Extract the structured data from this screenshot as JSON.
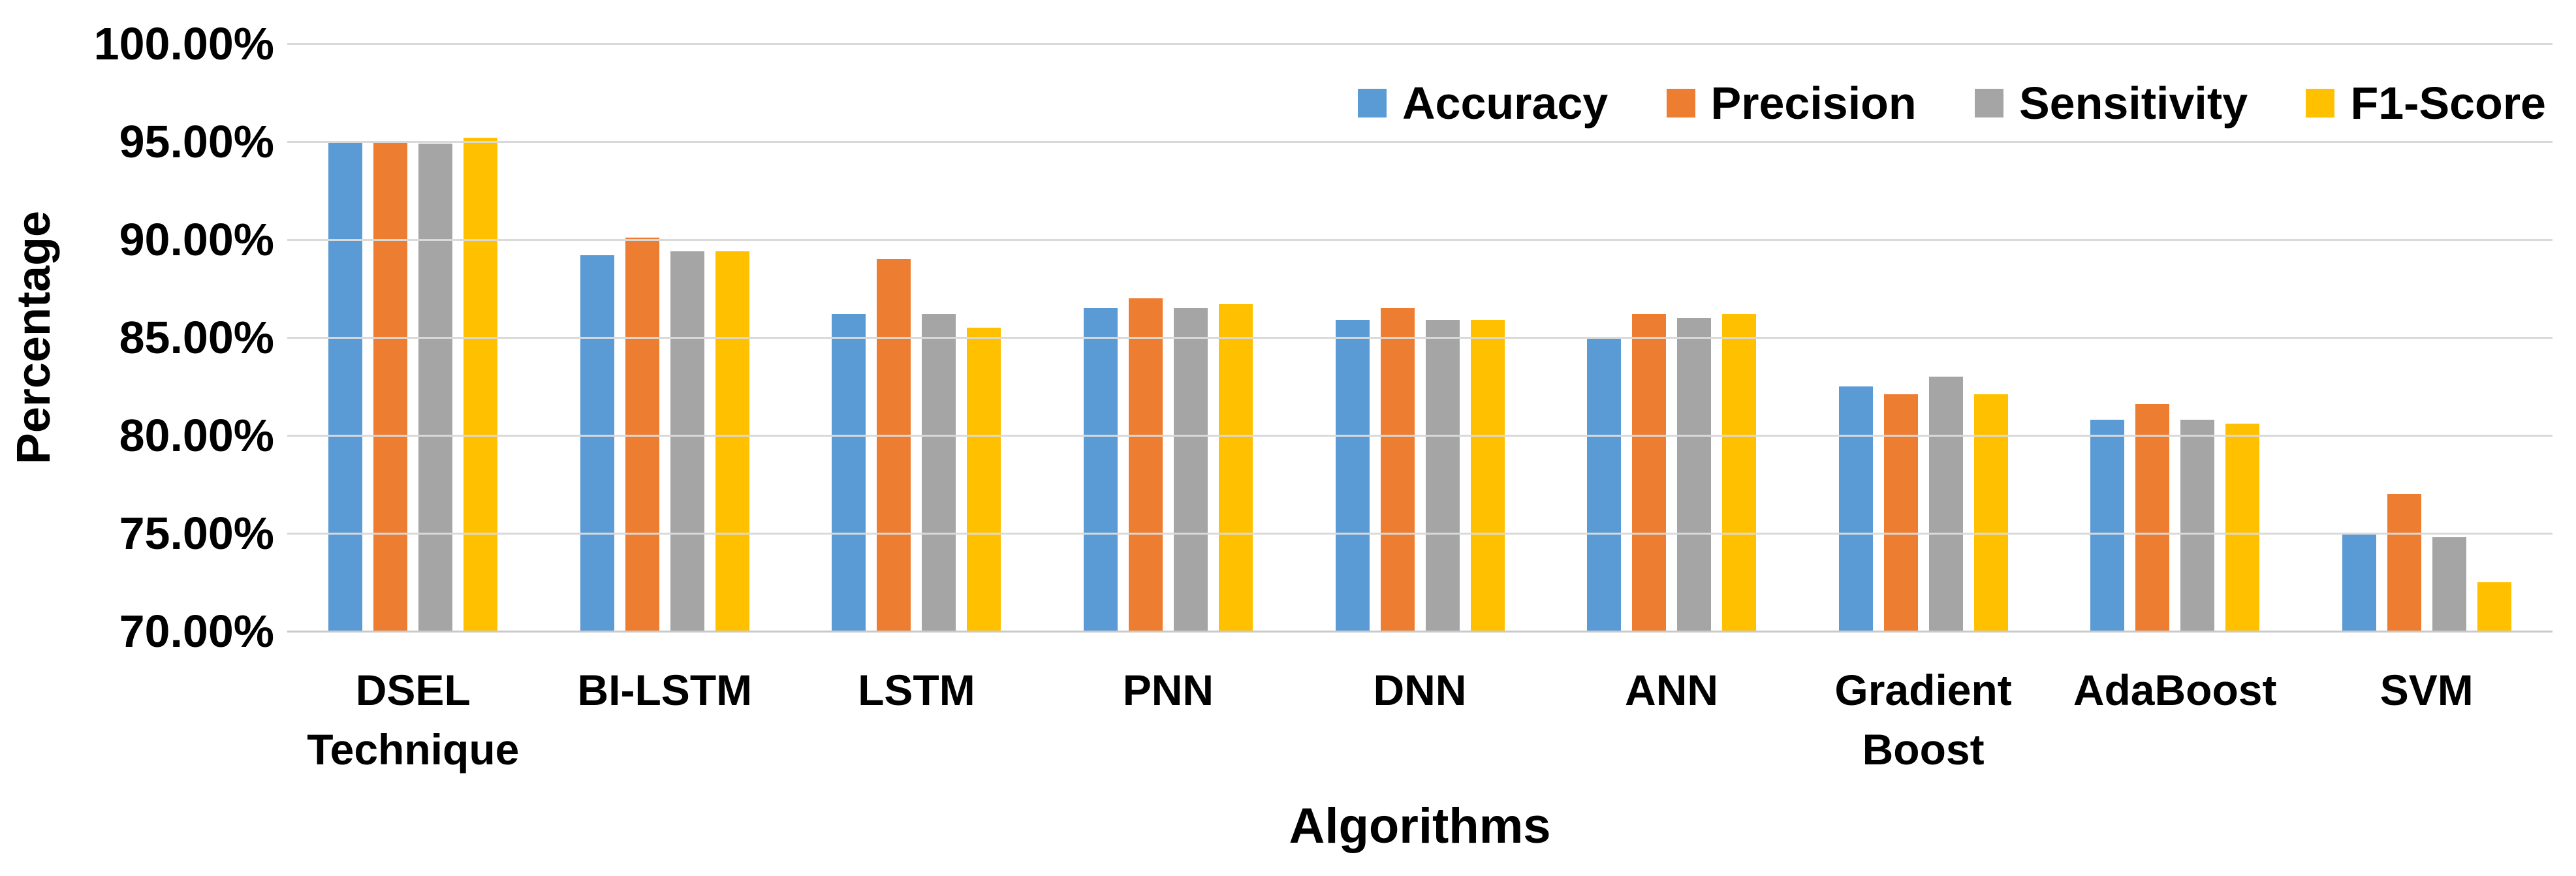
{
  "figure": {
    "y_axis_title": "Percentage",
    "x_axis_title": "Algorithms",
    "background_color": "#ffffff",
    "gridline_color": "#d9d9d9",
    "text_color": "#000000"
  },
  "chart_data": {
    "type": "bar",
    "title": "",
    "xlabel": "Algorithms",
    "ylabel": "Percentage",
    "ylim": [
      70,
      100
    ],
    "y_tick_step": 5,
    "y_ticks": [
      "100.00%",
      "95.00%",
      "90.00%",
      "85.00%",
      "80.00%",
      "75.00%",
      "70.00%"
    ],
    "grid": true,
    "legend_position": "top-right-inside",
    "categories": [
      "DSEL Technique",
      "BI-LSTM",
      "LSTM",
      "PNN",
      "DNN",
      "ANN",
      "Gradient Boost",
      "AdaBoost",
      "SVM"
    ],
    "category_label_lines": [
      "DSEL\nTechnique",
      "BI-LSTM",
      "LSTM",
      "PNN",
      "DNN",
      "ANN",
      "Gradient\nBoost",
      "AdaBoost",
      "SVM"
    ],
    "series": [
      {
        "name": "Accuracy",
        "color": "#5B9BD5",
        "values": [
          95.0,
          89.2,
          86.2,
          86.5,
          85.9,
          85.0,
          82.5,
          80.8,
          75.0
        ]
      },
      {
        "name": "Precision",
        "color": "#ED7D31",
        "values": [
          95.0,
          90.1,
          89.0,
          87.0,
          86.5,
          86.2,
          82.1,
          81.6,
          77.0
        ]
      },
      {
        "name": "Sensitivity",
        "color": "#A5A5A5",
        "values": [
          94.9,
          89.4,
          86.2,
          86.5,
          85.9,
          86.0,
          83.0,
          80.8,
          74.8
        ]
      },
      {
        "name": "F1-Score",
        "color": "#FFC000",
        "values": [
          95.2,
          89.4,
          85.5,
          86.7,
          85.9,
          86.2,
          82.1,
          80.6,
          72.5
        ]
      }
    ]
  }
}
